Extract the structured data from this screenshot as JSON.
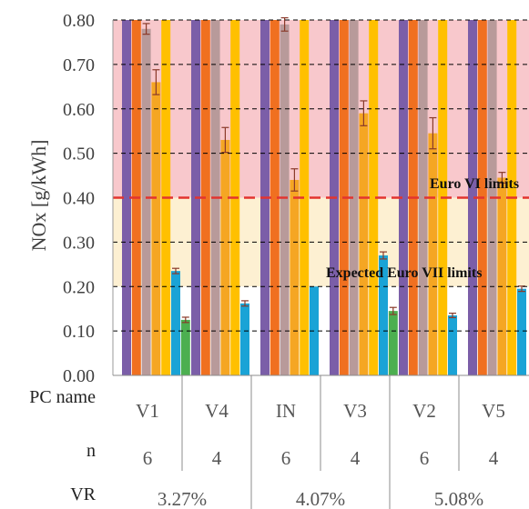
{
  "chart_data": {
    "type": "bar",
    "ylabel": "NOx [g/kWh]",
    "ylim": [
      0,
      0.8
    ],
    "yticks": [
      "0.00",
      "0.10",
      "0.20",
      "0.30",
      "0.40",
      "0.50",
      "0.60",
      "0.70",
      "0.80"
    ],
    "reference_lines": [
      {
        "label": "Euro VI limits",
        "value": 0.4,
        "color": "#e3342f"
      },
      {
        "label": "Expected Euro VII limits",
        "value": 0.2
      }
    ],
    "bands": [
      {
        "from": 0.4,
        "to": 0.8,
        "color": "#f8c8cc"
      },
      {
        "from": 0.2,
        "to": 0.4,
        "color": "#fdf0d2"
      }
    ],
    "groups": [
      {
        "pc_name": "V1",
        "n": "6",
        "values": [
          0.8,
          0.8,
          0.78,
          0.66,
          0.8,
          0.235,
          0.125
        ],
        "err": [
          0,
          0,
          0.012,
          0.028,
          0,
          0.006,
          0.006
        ]
      },
      {
        "pc_name": "V4",
        "n": "4",
        "values": [
          0.8,
          0.8,
          0.8,
          0.53,
          0.8,
          0.162,
          0.0
        ],
        "err": [
          0,
          0,
          0,
          0.028,
          0,
          0.006,
          0
        ]
      },
      {
        "pc_name": "IN",
        "n": "6",
        "values": [
          0.8,
          0.8,
          0.79,
          0.44,
          0.8,
          0.2,
          0.0
        ],
        "err": [
          0,
          0,
          0.015,
          0.025,
          0,
          0,
          0
        ]
      },
      {
        "pc_name": "V3",
        "n": "4",
        "values": [
          0.8,
          0.8,
          0.8,
          0.59,
          0.8,
          0.27,
          0.145
        ],
        "err": [
          0,
          0,
          0,
          0.028,
          0,
          0.008,
          0.008
        ]
      },
      {
        "pc_name": "V2",
        "n": "6",
        "values": [
          0.8,
          0.8,
          0.8,
          0.545,
          0.8,
          0.135,
          0.0
        ],
        "err": [
          0,
          0,
          0,
          0.035,
          0,
          0.005,
          0
        ]
      },
      {
        "pc_name": "V5",
        "n": "4",
        "values": [
          0.8,
          0.8,
          0.8,
          0.445,
          0.8,
          0.195,
          0.0
        ],
        "err": [
          0,
          0,
          0,
          0.012,
          0,
          0.006,
          0
        ]
      }
    ],
    "bar_colors": [
      "#7b5ea8",
      "#f07020",
      "#b89a9a",
      "#f5a623",
      "#ffc000",
      "#1aa3d6",
      "#4caf50"
    ],
    "row_labels": {
      "pc_name": "PC name",
      "n": "n",
      "vr": "VR"
    },
    "vr_values": [
      "3.27%",
      "4.07%",
      "5.08%"
    ]
  }
}
